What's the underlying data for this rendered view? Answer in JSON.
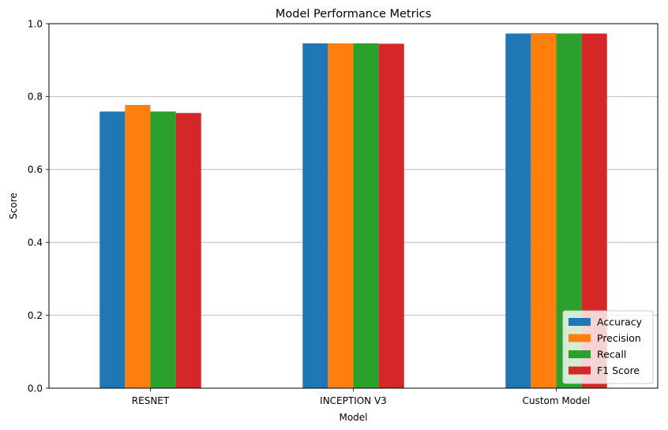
{
  "chart_data": {
    "type": "bar",
    "title": "Model Performance Metrics",
    "xlabel": "Model",
    "ylabel": "Score",
    "categories": [
      "RESNET",
      "INCEPTION V3",
      "Custom Model"
    ],
    "series": [
      {
        "name": "Accuracy",
        "color": "#1f77b4",
        "values": [
          0.759,
          0.946,
          0.973
        ]
      },
      {
        "name": "Precision",
        "color": "#ff7f0e",
        "values": [
          0.777,
          0.946,
          0.974
        ]
      },
      {
        "name": "Recall",
        "color": "#2ca02c",
        "values": [
          0.759,
          0.946,
          0.973
        ]
      },
      {
        "name": "F1 Score",
        "color": "#d62728",
        "values": [
          0.755,
          0.945,
          0.973
        ]
      }
    ],
    "ylim": [
      0,
      1.0
    ],
    "yticks": [
      "0.0",
      "0.2",
      "0.4",
      "0.6",
      "0.8",
      "1.0"
    ],
    "grid": "horizontal",
    "legend_position": "lower-right"
  }
}
